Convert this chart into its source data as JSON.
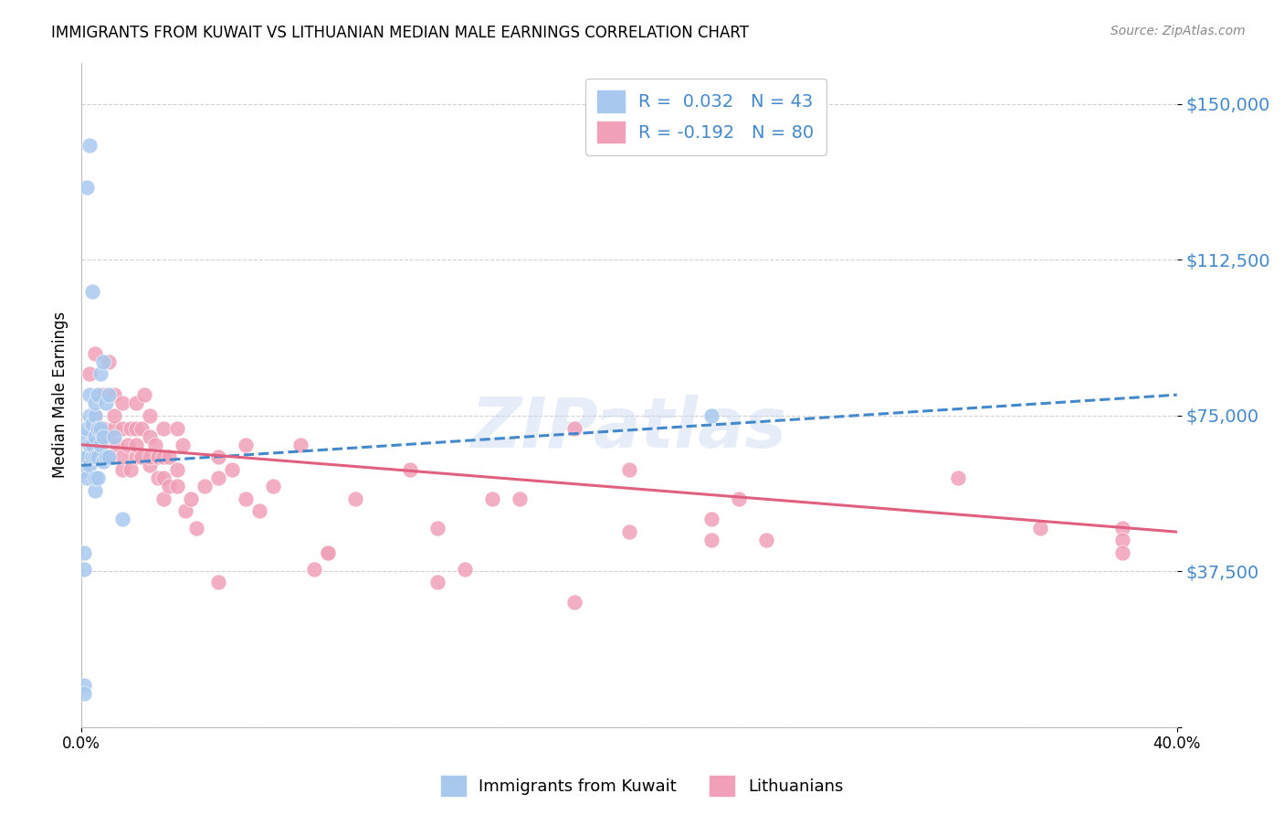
{
  "title": "IMMIGRANTS FROM KUWAIT VS LITHUANIAN MEDIAN MALE EARNINGS CORRELATION CHART",
  "source": "Source: ZipAtlas.com",
  "ylabel": "Median Male Earnings",
  "y_ticks": [
    0,
    37500,
    75000,
    112500,
    150000
  ],
  "y_tick_labels": [
    "",
    "$37,500",
    "$75,000",
    "$112,500",
    "$150,000"
  ],
  "xlim": [
    0.0,
    0.4
  ],
  "ylim": [
    0,
    160000
  ],
  "color_kuwait": "#a8c8ee",
  "color_lithuanian": "#f0a0b8",
  "color_kuwait_line": "#4488cc",
  "color_lithuanian_line": "#e06080",
  "watermark": "ZIPatlas",
  "kuwait_R": 0.032,
  "kuwait_N": 43,
  "lithuanian_R": -0.192,
  "lithuanian_N": 80,
  "kuwait_line_x0": 0.0,
  "kuwait_line_x1": 0.4,
  "kuwait_line_y0": 63000,
  "kuwait_line_y1": 80000,
  "lith_line_x0": 0.0,
  "lith_line_x1": 0.4,
  "lith_line_y0": 68000,
  "lith_line_y1": 47000,
  "kuwait_scatter_x": [
    0.001,
    0.001,
    0.001,
    0.001,
    0.001,
    0.002,
    0.002,
    0.002,
    0.002,
    0.003,
    0.003,
    0.003,
    0.003,
    0.003,
    0.004,
    0.004,
    0.004,
    0.004,
    0.005,
    0.005,
    0.005,
    0.005,
    0.005,
    0.005,
    0.006,
    0.006,
    0.006,
    0.006,
    0.007,
    0.007,
    0.007,
    0.008,
    0.008,
    0.008,
    0.009,
    0.009,
    0.01,
    0.01,
    0.012,
    0.015,
    0.23,
    0.001,
    0.001
  ],
  "kuwait_scatter_y": [
    10000,
    8000,
    65000,
    62000,
    70000,
    60000,
    65000,
    72000,
    130000,
    68000,
    75000,
    140000,
    63000,
    80000,
    65000,
    68000,
    73000,
    105000,
    57000,
    60000,
    65000,
    70000,
    75000,
    78000,
    60000,
    65000,
    72000,
    80000,
    68000,
    72000,
    85000,
    64000,
    70000,
    88000,
    65000,
    78000,
    65000,
    80000,
    70000,
    50000,
    75000,
    38000,
    42000
  ],
  "lith_scatter_x": [
    0.003,
    0.005,
    0.005,
    0.007,
    0.008,
    0.008,
    0.01,
    0.01,
    0.01,
    0.012,
    0.012,
    0.012,
    0.013,
    0.015,
    0.015,
    0.015,
    0.015,
    0.017,
    0.018,
    0.018,
    0.02,
    0.02,
    0.02,
    0.02,
    0.022,
    0.022,
    0.023,
    0.025,
    0.025,
    0.025,
    0.025,
    0.027,
    0.028,
    0.028,
    0.03,
    0.03,
    0.03,
    0.03,
    0.032,
    0.032,
    0.035,
    0.035,
    0.035,
    0.037,
    0.038,
    0.04,
    0.042,
    0.045,
    0.05,
    0.05,
    0.055,
    0.06,
    0.06,
    0.065,
    0.07,
    0.08,
    0.085,
    0.09,
    0.1,
    0.12,
    0.13,
    0.14,
    0.15,
    0.18,
    0.2,
    0.23,
    0.24,
    0.38,
    0.05,
    0.09,
    0.13,
    0.16,
    0.18,
    0.2,
    0.23,
    0.25,
    0.32,
    0.35,
    0.38,
    0.38
  ],
  "lith_scatter_y": [
    85000,
    75000,
    90000,
    68000,
    80000,
    72000,
    65000,
    70000,
    88000,
    72000,
    75000,
    80000,
    68000,
    62000,
    65000,
    72000,
    78000,
    68000,
    62000,
    72000,
    65000,
    68000,
    72000,
    78000,
    65000,
    72000,
    80000,
    63000,
    65000,
    70000,
    75000,
    68000,
    60000,
    65000,
    55000,
    60000,
    65000,
    72000,
    58000,
    65000,
    58000,
    62000,
    72000,
    68000,
    52000,
    55000,
    48000,
    58000,
    60000,
    65000,
    62000,
    55000,
    68000,
    52000,
    58000,
    68000,
    38000,
    42000,
    55000,
    62000,
    48000,
    38000,
    55000,
    30000,
    47000,
    45000,
    55000,
    48000,
    35000,
    42000,
    35000,
    55000,
    72000,
    62000,
    50000,
    45000,
    60000,
    48000,
    45000,
    42000
  ]
}
